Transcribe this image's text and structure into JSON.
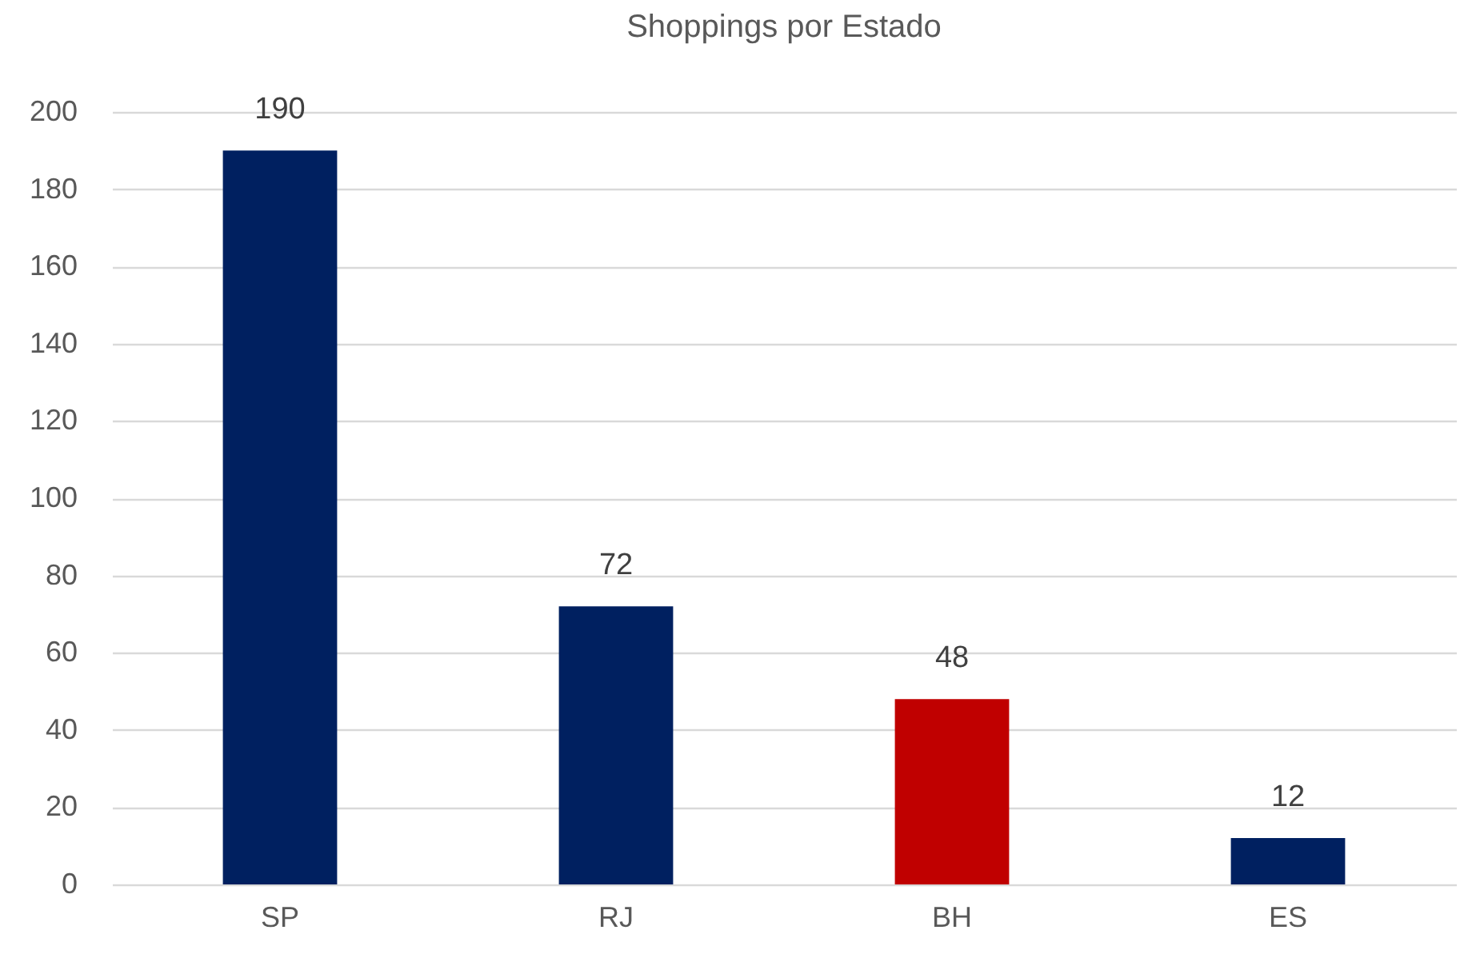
{
  "chart_data": {
    "type": "bar",
    "title": "Shoppings por Estado",
    "categories": [
      "SP",
      "RJ",
      "BH",
      "ES"
    ],
    "values": [
      190,
      72,
      48,
      12
    ],
    "colors": [
      "#002060",
      "#002060",
      "#c00000",
      "#002060"
    ],
    "ylim": [
      0,
      200
    ],
    "yticks": [
      0,
      20,
      40,
      60,
      80,
      100,
      120,
      140,
      160,
      180,
      200
    ],
    "grid": "y",
    "data_labels": true
  }
}
